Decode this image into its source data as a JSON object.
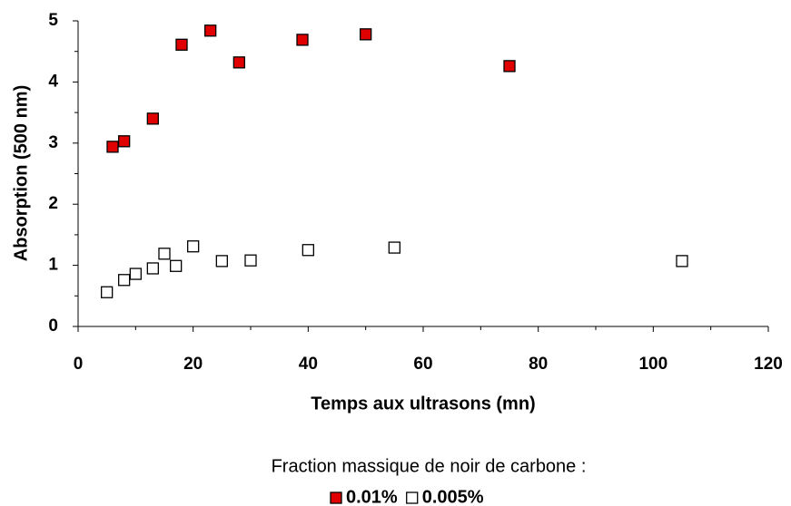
{
  "chart_data": {
    "type": "scatter",
    "x_label": "Temps aux ultrasons (mn)",
    "y_label": "Absorption (500 nm)",
    "legend_title": "Fraction massique de noir de carbone :",
    "legend_position": "bottom",
    "xlim": [
      0,
      120
    ],
    "xticks": [
      0,
      20,
      40,
      60,
      80,
      100,
      120
    ],
    "ylim": [
      0,
      5
    ],
    "yticks": [
      0,
      1,
      2,
      3,
      4,
      5
    ],
    "series": [
      {
        "name": "0.01%",
        "color": "#e00000",
        "x": [
          6,
          8,
          13,
          18,
          23,
          28,
          39,
          50,
          75
        ],
        "values": [
          2.94,
          3.03,
          3.4,
          4.61,
          4.84,
          4.32,
          4.69,
          4.78,
          4.26
        ]
      },
      {
        "name": "0.005%",
        "color": "#ffffff",
        "x": [
          5,
          8,
          10,
          13,
          15,
          17,
          20,
          25,
          30,
          40,
          55,
          105
        ],
        "values": [
          0.56,
          0.76,
          0.86,
          0.95,
          1.19,
          0.99,
          1.31,
          1.07,
          1.08,
          1.25,
          1.29,
          1.07
        ]
      }
    ]
  }
}
